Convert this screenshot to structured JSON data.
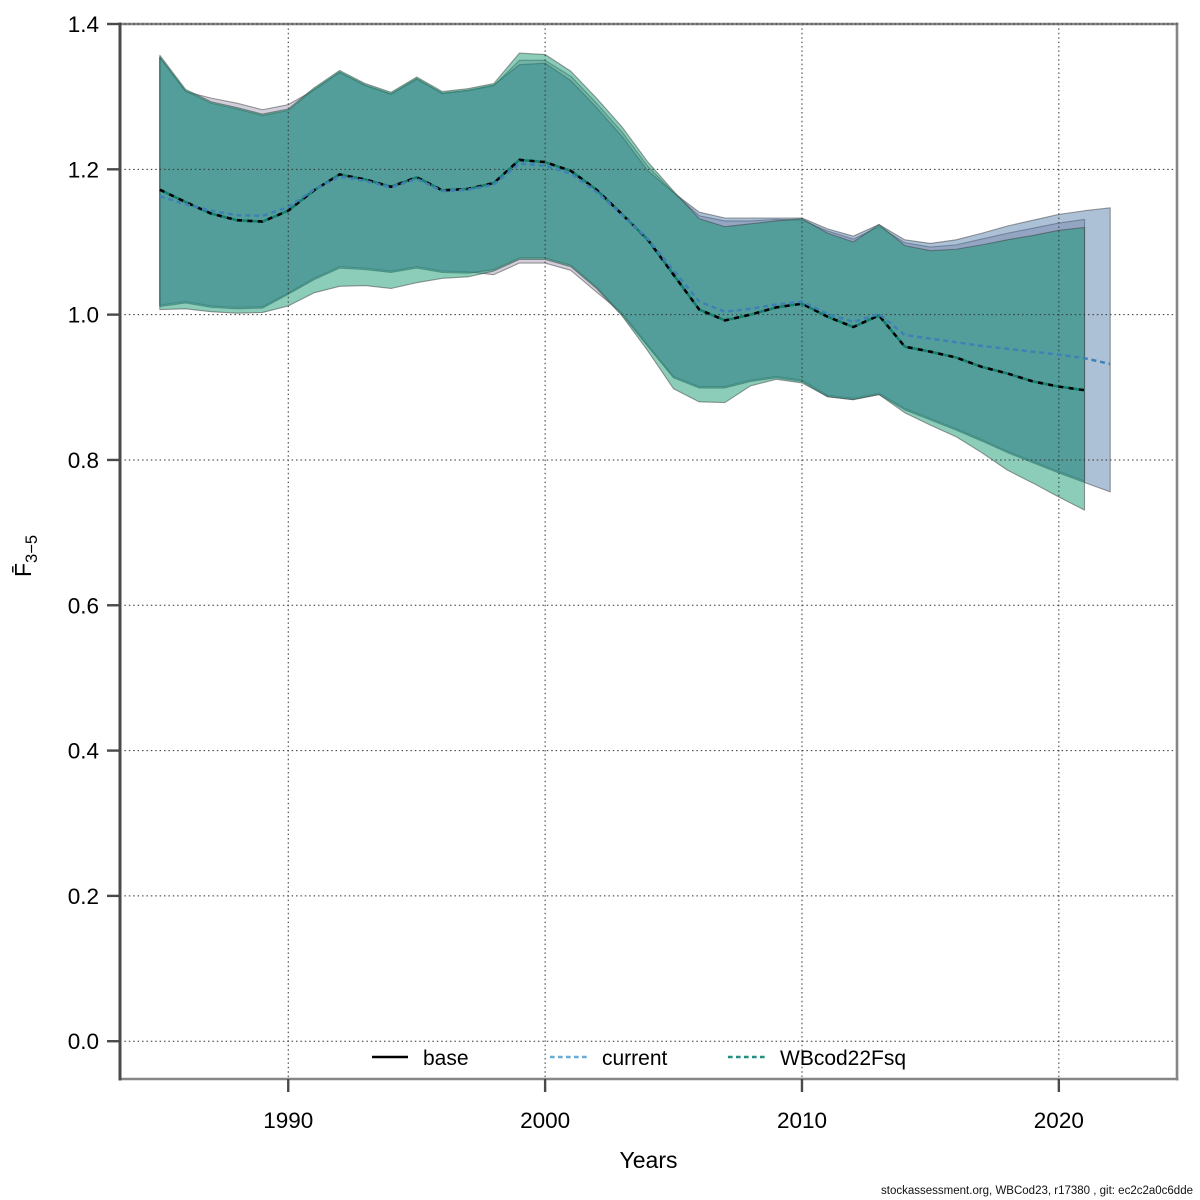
{
  "page": {
    "background": "#ffffff"
  },
  "footer": {
    "credit": "stockassessment.org, WBCod23, r17380 , git: ec2c2a0c6dde"
  },
  "chart_data": {
    "type": "line",
    "subtype": "line-with-confidence-bands",
    "title": "",
    "xlabel": "Years",
    "ylabel": "F̄",
    "ylabel_subscript": "3−5",
    "grid": "dotted",
    "legend_position": "bottom-center-inside",
    "xlim": [
      1983.45,
      2024.6
    ],
    "ylim": [
      -0.052,
      1.4
    ],
    "x_tick_values": [
      1990,
      2000,
      2010,
      2020
    ],
    "x_tick_labels": [
      "1990",
      "2000",
      "2010",
      "2020"
    ],
    "y_tick_values": [
      0.0,
      0.2,
      0.4,
      0.6,
      0.8,
      1.0,
      1.2,
      1.4
    ],
    "y_tick_labels": [
      "0.0",
      "0.2",
      "0.4",
      "0.6",
      "0.8",
      "1.0",
      "1.2",
      "1.4"
    ],
    "colors": {
      "band_edge": "rgba(60,60,60,0.5)",
      "gridline": "#333333",
      "axis_frame": "#868686",
      "axis_left": "#4a4a4a",
      "tick": "#4a4a4a",
      "text": "#000000"
    },
    "series": [
      {
        "name": "base",
        "legend_label": "base",
        "line_style": "solid",
        "line_color": "#000000",
        "legend_color": "#000000",
        "band_fill": "rgba(125,115,155,0.35)",
        "years": [
          1985,
          1986,
          1987,
          1988,
          1989,
          1990,
          1991,
          1992,
          1993,
          1994,
          1995,
          1996,
          1997,
          1998,
          1999,
          2000,
          2001,
          2002,
          2003,
          2004,
          2005,
          2006,
          2007,
          2008,
          2009,
          2010,
          2011,
          2012,
          2013,
          2014,
          2015,
          2016,
          2017,
          2018,
          2019,
          2020,
          2021
        ],
        "mean": [
          1.172,
          1.155,
          1.139,
          1.13,
          1.128,
          1.143,
          1.171,
          1.193,
          1.186,
          1.176,
          1.189,
          1.171,
          1.173,
          1.181,
          1.213,
          1.21,
          1.198,
          1.172,
          1.138,
          1.103,
          1.055,
          1.007,
          0.992,
          1.0,
          1.01,
          1.015,
          0.997,
          0.983,
          0.999,
          0.956,
          0.949,
          0.941,
          0.928,
          0.919,
          0.908,
          0.901,
          0.896
        ],
        "hi": [
          1.354,
          1.307,
          1.298,
          1.291,
          1.282,
          1.289,
          1.309,
          1.333,
          1.315,
          1.303,
          1.324,
          1.304,
          1.308,
          1.315,
          1.35,
          1.35,
          1.328,
          1.291,
          1.251,
          1.204,
          1.168,
          1.136,
          1.129,
          1.129,
          1.131,
          1.13,
          1.115,
          1.104,
          1.121,
          1.099,
          1.093,
          1.096,
          1.104,
          1.112,
          1.119,
          1.126,
          1.131
        ],
        "lo": [
          1.013,
          1.018,
          1.012,
          1.01,
          1.011,
          1.03,
          1.05,
          1.066,
          1.064,
          1.06,
          1.066,
          1.06,
          1.059,
          1.055,
          1.071,
          1.071,
          1.061,
          1.031,
          1.002,
          0.958,
          0.915,
          0.901,
          0.901,
          0.91,
          0.915,
          0.91,
          0.889,
          0.885,
          0.892,
          0.871,
          0.857,
          0.843,
          0.828,
          0.812,
          0.798,
          0.784,
          0.771
        ]
      },
      {
        "name": "current",
        "legend_label": "current",
        "line_style": "dashed",
        "line_color": "#3f81b5",
        "legend_color": "#69aad5",
        "band_fill": "rgba(70,115,165,0.45)",
        "years": [
          1985,
          1986,
          1987,
          1988,
          1989,
          1990,
          1991,
          1992,
          1993,
          1994,
          1995,
          1996,
          1997,
          1998,
          1999,
          2000,
          2001,
          2002,
          2003,
          2004,
          2005,
          2006,
          2007,
          2008,
          2009,
          2010,
          2011,
          2012,
          2013,
          2014,
          2015,
          2016,
          2017,
          2018,
          2019,
          2020,
          2021,
          2022
        ],
        "mean": [
          1.163,
          1.152,
          1.143,
          1.137,
          1.136,
          1.148,
          1.172,
          1.19,
          1.184,
          1.175,
          1.187,
          1.17,
          1.172,
          1.179,
          1.208,
          1.205,
          1.194,
          1.169,
          1.137,
          1.104,
          1.061,
          1.018,
          1.004,
          1.008,
          1.014,
          1.018,
          1.001,
          0.99,
          1.001,
          0.972,
          0.967,
          0.962,
          0.957,
          0.953,
          0.949,
          0.945,
          0.94,
          0.932
        ],
        "hi": [
          1.354,
          1.308,
          1.291,
          1.283,
          1.274,
          1.281,
          1.31,
          1.334,
          1.316,
          1.304,
          1.325,
          1.305,
          1.309,
          1.316,
          1.344,
          1.346,
          1.322,
          1.285,
          1.245,
          1.198,
          1.168,
          1.141,
          1.133,
          1.133,
          1.133,
          1.133,
          1.118,
          1.108,
          1.124,
          1.103,
          1.098,
          1.103,
          1.112,
          1.122,
          1.13,
          1.138,
          1.143,
          1.147
        ],
        "lo": [
          1.011,
          1.016,
          1.01,
          1.008,
          1.009,
          1.028,
          1.048,
          1.064,
          1.062,
          1.058,
          1.064,
          1.058,
          1.057,
          1.062,
          1.078,
          1.078,
          1.068,
          1.038,
          1.0,
          0.956,
          0.913,
          0.899,
          0.899,
          0.908,
          0.913,
          0.908,
          0.887,
          0.883,
          0.89,
          0.869,
          0.855,
          0.841,
          0.826,
          0.81,
          0.796,
          0.782,
          0.769,
          0.756
        ]
      },
      {
        "name": "WBcod22Fsq",
        "legend_label": "WBcod22Fsq",
        "line_style": "dashed",
        "line_color": "#15806f",
        "legend_color": "#279084",
        "dash_companion_color": "#000000",
        "band_fill": "rgba(15,150,110,0.48)",
        "years": [
          1985,
          1986,
          1987,
          1988,
          1989,
          1990,
          1991,
          1992,
          1993,
          1994,
          1995,
          1996,
          1997,
          1998,
          1999,
          2000,
          2001,
          2002,
          2003,
          2004,
          2005,
          2006,
          2007,
          2008,
          2009,
          2010,
          2011,
          2012,
          2013,
          2014,
          2015,
          2016,
          2017,
          2018,
          2019,
          2020,
          2021
        ],
        "mean": [
          1.172,
          1.155,
          1.139,
          1.13,
          1.128,
          1.143,
          1.171,
          1.193,
          1.186,
          1.176,
          1.189,
          1.171,
          1.173,
          1.181,
          1.213,
          1.21,
          1.198,
          1.172,
          1.138,
          1.103,
          1.055,
          1.007,
          0.992,
          1.0,
          1.01,
          1.015,
          0.997,
          0.983,
          0.999,
          0.956,
          0.949,
          0.941,
          0.928,
          0.919,
          0.908,
          0.901,
          0.896
        ],
        "hi": [
          1.357,
          1.31,
          1.293,
          1.285,
          1.276,
          1.283,
          1.312,
          1.336,
          1.318,
          1.306,
          1.327,
          1.307,
          1.311,
          1.318,
          1.36,
          1.358,
          1.335,
          1.298,
          1.258,
          1.21,
          1.17,
          1.132,
          1.121,
          1.125,
          1.129,
          1.132,
          1.112,
          1.1,
          1.124,
          1.095,
          1.088,
          1.09,
          1.096,
          1.103,
          1.109,
          1.116,
          1.12
        ],
        "lo": [
          1.007,
          1.008,
          1.004,
          1.002,
          1.003,
          1.012,
          1.03,
          1.039,
          1.04,
          1.036,
          1.044,
          1.05,
          1.052,
          1.06,
          1.076,
          1.076,
          1.066,
          1.036,
          0.998,
          0.95,
          0.898,
          0.88,
          0.879,
          0.902,
          0.911,
          0.906,
          0.887,
          0.883,
          0.89,
          0.865,
          0.848,
          0.832,
          0.81,
          0.786,
          0.768,
          0.749,
          0.731
        ]
      }
    ]
  }
}
